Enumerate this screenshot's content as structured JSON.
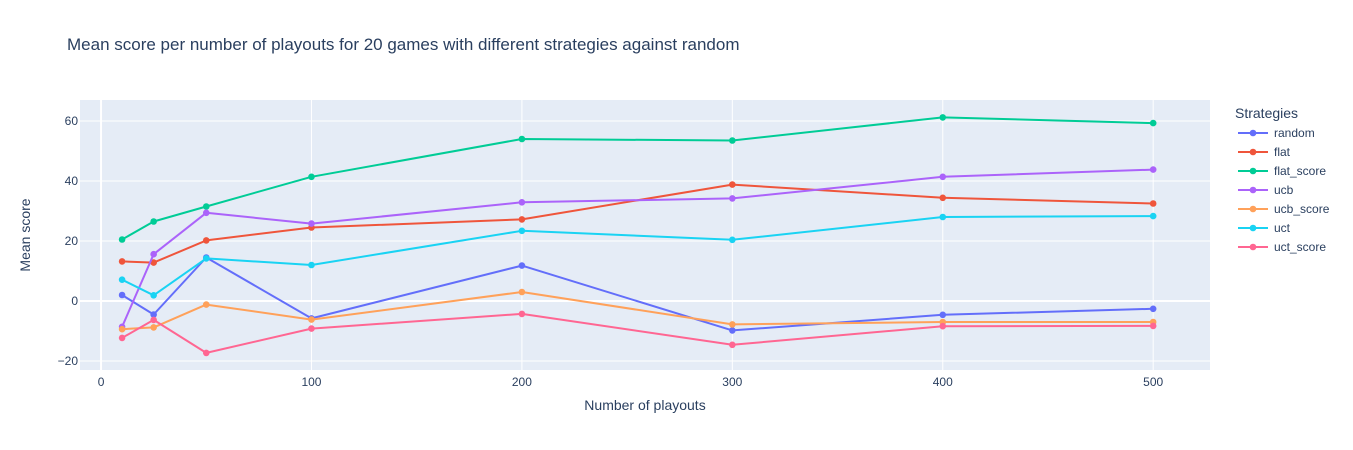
{
  "chart_data": {
    "type": "line",
    "title": "Mean score per number of playouts for 20 games with different strategies against random",
    "xlabel": "Number of playouts",
    "ylabel": "Mean score",
    "xlim": [
      -10,
      527
    ],
    "ylim": [
      -23,
      67
    ],
    "xticks": [
      0,
      100,
      200,
      300,
      400,
      500
    ],
    "yticks": [
      -20,
      0,
      20,
      40,
      60
    ],
    "grid": true,
    "legend_title": "Strategies",
    "legend_position": "right",
    "x": [
      10,
      25,
      50,
      100,
      200,
      300,
      400,
      500
    ],
    "series": [
      {
        "name": "random",
        "color": "#636efa",
        "values": [
          2,
          -4.5,
          14.5,
          -5.8,
          11.8,
          -9.8,
          -4.6,
          -2.6
        ]
      },
      {
        "name": "flat",
        "color": "#ef553b",
        "values": [
          13.2,
          12.8,
          20.2,
          24.5,
          27.2,
          38.8,
          34.4,
          32.5
        ]
      },
      {
        "name": "flat_score",
        "color": "#00cc96",
        "values": [
          20.5,
          26.5,
          31.5,
          41.4,
          54,
          53.5,
          61.2,
          59.3
        ]
      },
      {
        "name": "ucb",
        "color": "#ab63fa",
        "values": [
          -8.6,
          15.6,
          29.4,
          25.8,
          32.9,
          34.2,
          41.4,
          43.8
        ]
      },
      {
        "name": "ucb_score",
        "color": "#ffa15a",
        "values": [
          -9.4,
          -8.8,
          -1.2,
          -6.2,
          3,
          -7.8,
          -7,
          -7
        ]
      },
      {
        "name": "uct",
        "color": "#19d3f3",
        "values": [
          7.1,
          1.9,
          14.2,
          12,
          23.4,
          20.4,
          28,
          28.3
        ]
      },
      {
        "name": "uct_score",
        "color": "#ff6692",
        "values": [
          -12.3,
          -6.3,
          -17.3,
          -9.2,
          -4.3,
          -14.6,
          -8.4,
          -8.3
        ]
      }
    ]
  }
}
